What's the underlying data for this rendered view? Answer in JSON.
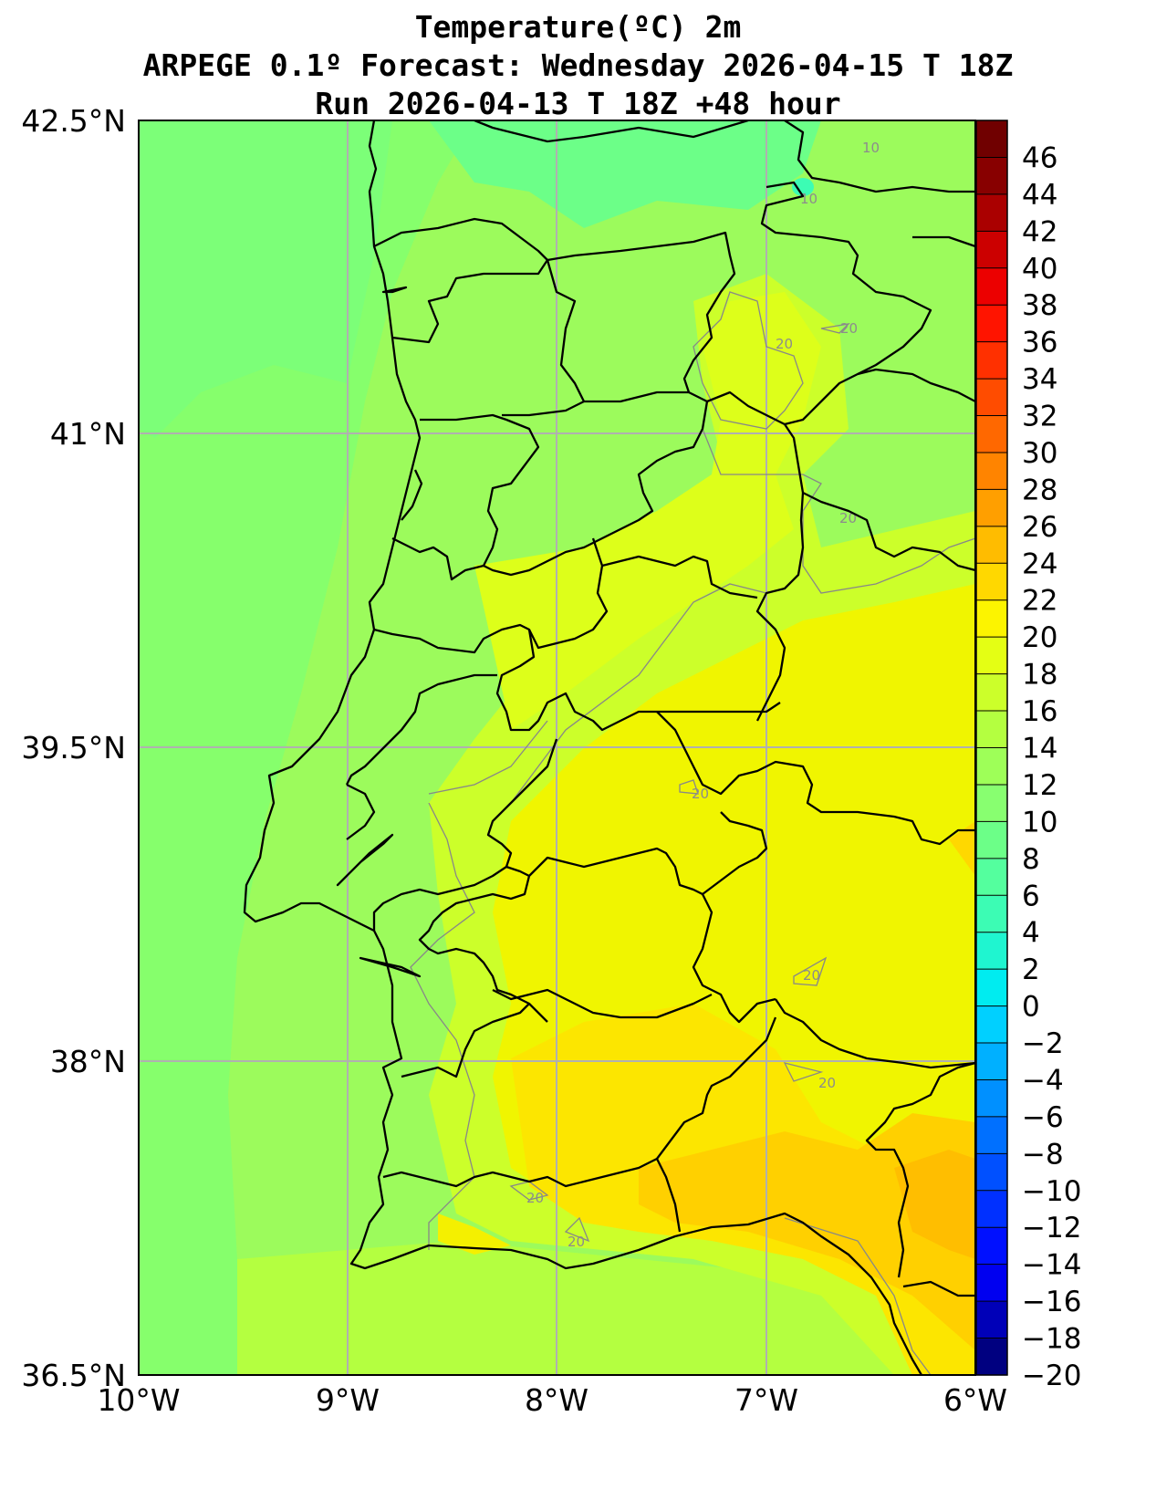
{
  "title": {
    "line1": "Temperature(ºC) 2m",
    "line2": "ARPEGE 0.1º Forecast: Wednesday 2026-04-15 T 18Z",
    "line3": "Run 2026-04-13 T 18Z +48 hour"
  },
  "map": {
    "region": "Portugal",
    "lon_range": [
      -10,
      -6
    ],
    "lat_range": [
      36.5,
      42.5
    ],
    "lon_ticks": [
      "10°W",
      "9°W",
      "8°W",
      "7°W",
      "6°W"
    ],
    "lat_ticks": [
      "42.5°N",
      "41°N",
      "39.5°N",
      "38°N",
      "36.5°N"
    ],
    "gridlines": true,
    "contour_labels": [
      "10",
      "10",
      "20",
      "20",
      "20",
      "20",
      "20",
      "20",
      "20",
      "20"
    ]
  },
  "colorbar": {
    "ticks": [
      "46",
      "44",
      "42",
      "40",
      "38",
      "36",
      "34",
      "32",
      "30",
      "28",
      "26",
      "24",
      "22",
      "20",
      "18",
      "16",
      "14",
      "12",
      "10",
      "8",
      "6",
      "4",
      "2",
      "0",
      "−2",
      "−4",
      "−6",
      "−8",
      "−10",
      "−12",
      "−14",
      "−16",
      "−18",
      "−20"
    ],
    "colors": [
      "#000080",
      "#0000b8",
      "#0000f0",
      "#0010ff",
      "#0030ff",
      "#0050ff",
      "#0070ff",
      "#0090ff",
      "#00b0ff",
      "#00d0ff",
      "#00ecf0",
      "#1ff5d0",
      "#3cfcb4",
      "#54ff9e",
      "#6cff88",
      "#88ff70",
      "#9eff58",
      "#b4ff40",
      "#ccff2a",
      "#e4ff14",
      "#fcf400",
      "#ffd800",
      "#ffbc00",
      "#ff9f00",
      "#ff8400",
      "#ff6800",
      "#ff4c00",
      "#ff3000",
      "#ff1400",
      "#ec0000",
      "#cc0000",
      "#aa0000",
      "#880000",
      "#700000"
    ]
  }
}
